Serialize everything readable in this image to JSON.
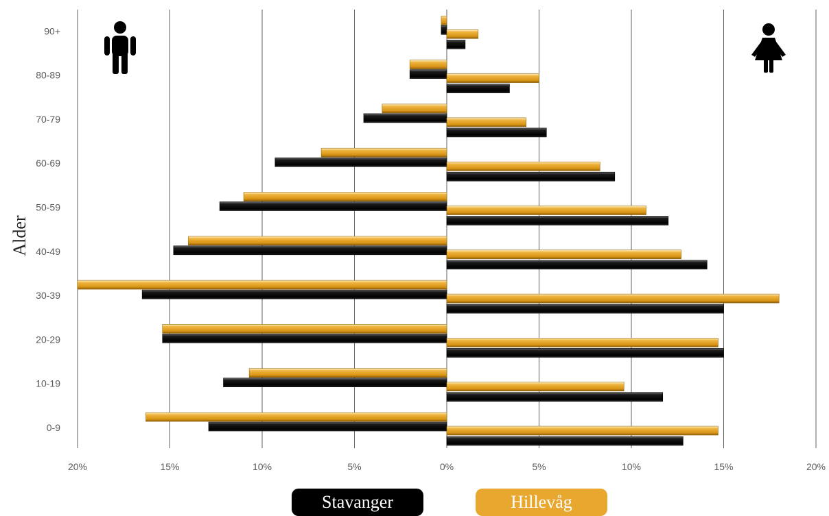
{
  "chart_data": {
    "type": "bar",
    "orientation": "horizontal-population-pyramid",
    "ylabel": "Alder",
    "categories": [
      "0-9",
      "10-19",
      "20-29",
      "30-39",
      "40-49",
      "50-59",
      "60-69",
      "70-79",
      "80-89",
      "90+"
    ],
    "xlim": [
      -20,
      20
    ],
    "xticks": [
      "20%",
      "15%",
      "10%",
      "5%",
      "0%",
      "5%",
      "10%",
      "15%",
      "20%"
    ],
    "grid": "vertical",
    "legend_position": "bottom",
    "series": [
      {
        "name": "Stavanger",
        "side": "men",
        "color": "#000000",
        "values": [
          12.9,
          12.1,
          15.4,
          16.5,
          14.8,
          12.3,
          9.3,
          4.5,
          2.0,
          0.3
        ]
      },
      {
        "name": "Hillevåg",
        "side": "men",
        "color": "#e8a830",
        "values": [
          16.3,
          10.7,
          15.4,
          20.0,
          14.0,
          11.0,
          6.8,
          3.5,
          2.0,
          0.3
        ]
      },
      {
        "name": "Stavanger",
        "side": "women",
        "color": "#000000",
        "values": [
          12.8,
          11.7,
          15.0,
          15.0,
          14.1,
          12.0,
          9.1,
          5.4,
          3.4,
          1.0
        ]
      },
      {
        "name": "Hillevåg",
        "side": "women",
        "color": "#e8a830",
        "values": [
          14.7,
          9.6,
          14.7,
          18.0,
          12.7,
          10.8,
          8.3,
          4.3,
          5.0,
          1.7
        ]
      }
    ],
    "icons": [
      "male-icon",
      "female-icon"
    ]
  },
  "legend": {
    "stavanger": "Stavanger",
    "hillevag": "Hillevåg"
  }
}
